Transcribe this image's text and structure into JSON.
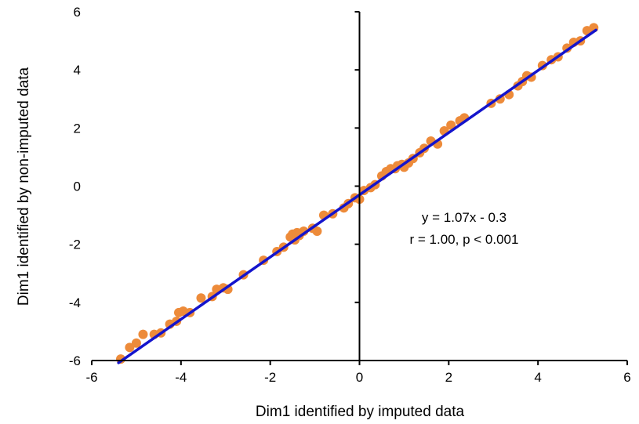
{
  "chart_data": {
    "type": "scatter",
    "title": "",
    "xlabel": "Dim1 identified by imputed data",
    "ylabel": "Dim1 identified by non-imputed data",
    "xlim": [
      -6,
      6
    ],
    "ylim": [
      -6,
      6
    ],
    "x_ticks": [
      "-6",
      "-4",
      "-2",
      "0",
      "2",
      "4",
      "6"
    ],
    "y_ticks": [
      "-6",
      "-4",
      "-2",
      "0",
      "2",
      "4",
      "6"
    ],
    "grid": false,
    "colors": {
      "points": "#ED8B3A",
      "fit_line": "#1414CC",
      "axes": "#000000"
    },
    "annotation_lines": [
      "y = 1.07x - 0.3",
      "r = 1.00, p < 0.001"
    ],
    "fit": {
      "slope": 1.07,
      "intercept": -0.3,
      "x_range": [
        -5.4,
        5.3
      ]
    },
    "points": {
      "x": [
        -5.35,
        -5.15,
        -5.0,
        -4.85,
        -4.6,
        -4.45,
        -4.25,
        -4.1,
        -4.05,
        -3.95,
        -3.8,
        -3.55,
        -3.3,
        -3.2,
        -3.05,
        -2.95,
        -2.6,
        -2.15,
        -1.85,
        -1.7,
        -1.55,
        -1.5,
        -1.45,
        -1.4,
        -1.35,
        -1.25,
        -1.05,
        -0.95,
        -0.8,
        -0.6,
        -0.35,
        -0.25,
        -0.1,
        0.0,
        0.1,
        0.25,
        0.35,
        0.5,
        0.6,
        0.7,
        0.8,
        0.85,
        0.95,
        1.0,
        1.1,
        1.2,
        1.35,
        1.45,
        1.6,
        1.75,
        1.9,
        2.05,
        2.25,
        2.35,
        2.95,
        3.15,
        3.35,
        3.55,
        3.65,
        3.75,
        3.85,
        4.1,
        4.3,
        4.45,
        4.65,
        4.8,
        4.95,
        5.1,
        5.25
      ],
      "y": [
        -5.95,
        -5.55,
        -5.4,
        -5.1,
        -5.1,
        -5.05,
        -4.75,
        -4.65,
        -4.35,
        -4.3,
        -4.35,
        -3.85,
        -3.8,
        -3.55,
        -3.5,
        -3.55,
        -3.05,
        -2.55,
        -2.25,
        -2.1,
        -1.75,
        -1.65,
        -1.85,
        -1.6,
        -1.7,
        -1.55,
        -1.45,
        -1.55,
        -1.0,
        -0.95,
        -0.75,
        -0.6,
        -0.4,
        -0.45,
        -0.15,
        -0.05,
        0.05,
        0.35,
        0.5,
        0.6,
        0.6,
        0.7,
        0.75,
        0.65,
        0.8,
        0.95,
        1.15,
        1.3,
        1.55,
        1.45,
        1.9,
        2.1,
        2.25,
        2.35,
        2.85,
        3.0,
        3.15,
        3.45,
        3.6,
        3.8,
        3.75,
        4.15,
        4.35,
        4.45,
        4.75,
        4.95,
        5.0,
        5.35,
        5.45
      ]
    }
  }
}
